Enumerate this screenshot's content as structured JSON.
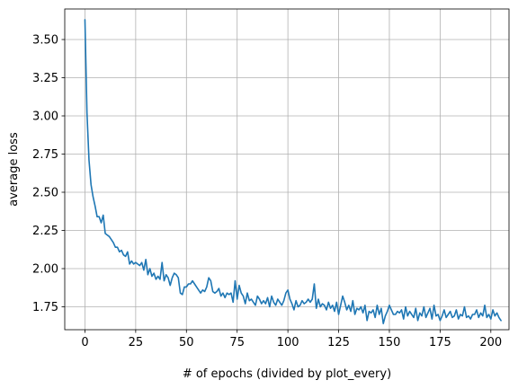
{
  "chart_data": {
    "type": "line",
    "title": "",
    "xlabel": "# of epochs (divided by plot_every)",
    "ylabel": "average loss",
    "xlim": [
      -9.95,
      208.95
    ],
    "ylim": [
      1.6,
      3.7
    ],
    "xticks": [
      0,
      25,
      50,
      75,
      100,
      125,
      150,
      175,
      200
    ],
    "yticks": [
      1.75,
      2.0,
      2.25,
      2.5,
      2.75,
      3.0,
      3.25,
      3.5
    ],
    "xtick_labels": [
      "0",
      "25",
      "50",
      "75",
      "100",
      "125",
      "150",
      "175",
      "200"
    ],
    "ytick_labels": [
      "1.75",
      "2.00",
      "2.25",
      "2.50",
      "2.75",
      "3.00",
      "3.25",
      "3.50"
    ],
    "grid": true,
    "series": [
      {
        "color": "#1f77b4",
        "x_start": 0,
        "x_step": 1,
        "values": [
          3.63,
          3.02,
          2.71,
          2.55,
          2.47,
          2.41,
          2.34,
          2.34,
          2.3,
          2.35,
          2.23,
          2.22,
          2.21,
          2.19,
          2.17,
          2.14,
          2.14,
          2.11,
          2.12,
          2.09,
          2.08,
          2.11,
          2.03,
          2.05,
          2.03,
          2.04,
          2.03,
          2.02,
          2.04,
          1.99,
          2.06,
          1.96,
          2.0,
          1.95,
          1.97,
          1.93,
          1.95,
          1.93,
          2.04,
          1.92,
          1.96,
          1.94,
          1.89,
          1.94,
          1.97,
          1.96,
          1.94,
          1.84,
          1.83,
          1.88,
          1.88,
          1.9,
          1.9,
          1.92,
          1.9,
          1.88,
          1.86,
          1.84,
          1.86,
          1.85,
          1.88,
          1.94,
          1.92,
          1.85,
          1.84,
          1.85,
          1.87,
          1.82,
          1.84,
          1.81,
          1.84,
          1.83,
          1.84,
          1.78,
          1.92,
          1.8,
          1.89,
          1.84,
          1.82,
          1.77,
          1.84,
          1.79,
          1.8,
          1.78,
          1.76,
          1.82,
          1.8,
          1.77,
          1.79,
          1.77,
          1.81,
          1.75,
          1.82,
          1.78,
          1.76,
          1.8,
          1.78,
          1.76,
          1.79,
          1.84,
          1.86,
          1.8,
          1.77,
          1.73,
          1.79,
          1.75,
          1.76,
          1.79,
          1.77,
          1.78,
          1.8,
          1.78,
          1.8,
          1.9,
          1.74,
          1.8,
          1.75,
          1.77,
          1.76,
          1.73,
          1.78,
          1.74,
          1.76,
          1.72,
          1.78,
          1.7,
          1.76,
          1.82,
          1.78,
          1.73,
          1.76,
          1.72,
          1.79,
          1.7,
          1.74,
          1.73,
          1.75,
          1.71,
          1.76,
          1.66,
          1.72,
          1.71,
          1.73,
          1.68,
          1.76,
          1.7,
          1.74,
          1.64,
          1.69,
          1.72,
          1.76,
          1.73,
          1.7,
          1.7,
          1.72,
          1.71,
          1.73,
          1.67,
          1.75,
          1.69,
          1.72,
          1.7,
          1.68,
          1.74,
          1.66,
          1.71,
          1.69,
          1.75,
          1.68,
          1.71,
          1.74,
          1.67,
          1.76,
          1.69,
          1.7,
          1.66,
          1.69,
          1.73,
          1.68,
          1.7,
          1.72,
          1.68,
          1.69,
          1.73,
          1.67,
          1.7,
          1.69,
          1.75,
          1.68,
          1.69,
          1.67,
          1.7,
          1.7,
          1.73,
          1.68,
          1.71,
          1.69,
          1.76,
          1.68,
          1.7,
          1.67,
          1.73,
          1.69,
          1.71,
          1.68,
          1.66
        ]
      }
    ]
  }
}
